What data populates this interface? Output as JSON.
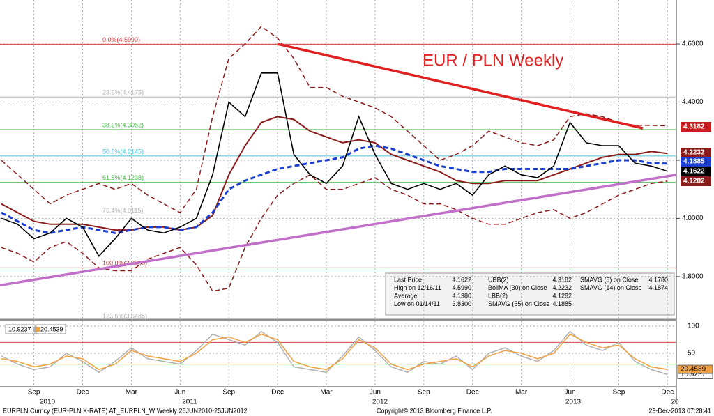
{
  "chart_data": {
    "type": "line",
    "title": "EUR / PLN Weekly",
    "categories": [
      null,
      null,
      "Sep",
      null,
      null,
      "Dec",
      null,
      null,
      "Mar",
      null,
      null,
      "Jun",
      null,
      null,
      "Sep",
      null,
      null,
      "Dec",
      null,
      null,
      "Mar",
      null,
      null,
      "Jun",
      null,
      null,
      "Sep",
      null,
      null,
      "Dec",
      null,
      null,
      "Mar",
      null,
      null,
      "Jun",
      null,
      null,
      "Sep",
      null,
      null,
      "Dec"
    ],
    "years": [
      "2010",
      "2011",
      "2012",
      "2013",
      "20"
    ],
    "series": [
      {
        "name": "Last Price",
        "color": "#000000",
        "style": "solid",
        "width": 1.6,
        "values": [
          4.0,
          3.98,
          3.93,
          3.95,
          4.0,
          3.97,
          3.87,
          3.93,
          4.0,
          3.96,
          3.95,
          3.97,
          4.0,
          4.15,
          4.4,
          4.35,
          4.5,
          4.5,
          4.22,
          4.15,
          4.12,
          4.18,
          4.35,
          4.22,
          4.12,
          4.1,
          4.12,
          4.1,
          4.12,
          4.08,
          4.15,
          4.18,
          4.15,
          4.14,
          4.18,
          4.33,
          4.26,
          4.25,
          4.25,
          4.19,
          4.18,
          4.1622
        ]
      },
      {
        "name": "SMAVG (55) on Close",
        "color": "#1a3fd1",
        "style": "dashed",
        "width": 3,
        "values": [
          4.02,
          3.99,
          3.96,
          3.95,
          3.96,
          3.97,
          3.96,
          3.95,
          3.96,
          3.97,
          3.97,
          3.96,
          3.97,
          4.02,
          4.1,
          4.13,
          4.15,
          4.17,
          4.18,
          4.19,
          4.2,
          4.21,
          4.24,
          4.25,
          4.24,
          4.22,
          4.2,
          4.18,
          4.17,
          4.16,
          4.16,
          4.17,
          4.17,
          4.17,
          4.17,
          4.17,
          4.18,
          4.19,
          4.2,
          4.2,
          4.19,
          4.1885
        ]
      },
      {
        "name": "BollMA (30) on Close",
        "color": "#8b1a1a",
        "style": "solid",
        "width": 2,
        "values": [
          4.05,
          4.02,
          3.99,
          3.98,
          3.98,
          3.98,
          3.97,
          3.96,
          3.96,
          3.97,
          3.97,
          3.96,
          3.97,
          4.01,
          4.15,
          4.25,
          4.33,
          4.35,
          4.34,
          4.3,
          4.28,
          4.26,
          4.27,
          4.26,
          4.22,
          4.2,
          4.18,
          4.16,
          4.13,
          4.12,
          4.12,
          4.13,
          4.13,
          4.13,
          4.15,
          4.17,
          4.19,
          4.21,
          4.22,
          4.22,
          4.23,
          4.2232
        ]
      },
      {
        "name": "UBB(2)",
        "color": "#8b1a1a",
        "style": "dashed",
        "width": 1.5,
        "values": [
          4.2,
          4.15,
          4.1,
          4.05,
          4.08,
          4.1,
          4.12,
          4.1,
          4.12,
          4.08,
          4.05,
          4.02,
          4.1,
          4.35,
          4.55,
          4.6,
          4.66,
          4.62,
          4.55,
          4.45,
          4.45,
          4.42,
          4.4,
          4.38,
          4.35,
          4.3,
          4.25,
          4.2,
          4.22,
          4.25,
          4.3,
          4.28,
          4.26,
          4.25,
          4.27,
          4.35,
          4.36,
          4.35,
          4.33,
          4.32,
          4.32,
          4.3182
        ]
      },
      {
        "name": "LBB(2)",
        "color": "#8b1a1a",
        "style": "dashed",
        "width": 1.5,
        "values": [
          3.9,
          3.88,
          3.85,
          3.9,
          3.92,
          3.88,
          3.83,
          3.82,
          3.82,
          3.86,
          3.88,
          3.9,
          3.84,
          3.75,
          3.76,
          3.9,
          4.0,
          4.08,
          4.12,
          4.15,
          4.1,
          4.1,
          4.12,
          4.14,
          4.1,
          4.08,
          4.05,
          4.05,
          4.03,
          4.0,
          3.98,
          3.98,
          4.0,
          4.02,
          4.03,
          4.0,
          4.02,
          4.05,
          4.08,
          4.1,
          4.12,
          4.1282
        ]
      }
    ],
    "ylim": [
      3.644,
      4.751
    ],
    "yticks": [
      {
        "value": 3.8,
        "label": "3.8000"
      },
      {
        "value": 4.0,
        "label": "4.0000"
      },
      {
        "value": 4.2,
        "label": "4.2000"
      },
      {
        "value": 4.4,
        "label": "4.4000"
      },
      {
        "value": 4.6,
        "label": "4.6000"
      }
    ],
    "grid": true,
    "last_value_boxes": [
      {
        "series": 3,
        "bg": "#c81e1e"
      },
      {
        "series": 2,
        "bg": "#8b1a1a"
      },
      {
        "series": 1,
        "bg": "#1a3fd1"
      },
      {
        "series": 0,
        "bg": "#000000"
      },
      {
        "series": 4,
        "bg": "#8b1a1a"
      }
    ],
    "fib_levels": [
      {
        "label": "0.0%(4.5990)",
        "value": 4.599,
        "color": "#d04040"
      },
      {
        "label": "23.6%(4.4175)",
        "value": 4.4175,
        "color": "#b0b0b0"
      },
      {
        "label": "38.2%(4.3052)",
        "value": 4.3052,
        "color": "#3cb83c"
      },
      {
        "label": "50.0%(4.2145)",
        "value": 4.2145,
        "color": "#40c8e0"
      },
      {
        "label": "61.8%(4.1238)",
        "value": 4.1238,
        "color": "#3cb83c"
      },
      {
        "label": "76.4%(4.0115)",
        "value": 4.0115,
        "color": "#b0b0b0"
      },
      {
        "label": "100.0%(3.8300)",
        "value": 3.83,
        "color": "#a03030"
      },
      {
        "label": "123.6%(3.6485)",
        "value": 3.6485,
        "color": "#b0b0b0"
      }
    ],
    "trend_lines": [
      {
        "color": "#e02020",
        "values": [
          4.6,
          4.31
        ]
      },
      {
        "color": "#c070c8",
        "values": [
          3.77,
          4.15
        ]
      }
    ],
    "legend": [
      [
        {
          "label": "Last Price",
          "value": "4.1622"
        },
        {
          "label": "High on 12/16/11",
          "value": "4.5990"
        },
        {
          "label": "Average",
          "value": "4.1380"
        },
        {
          "label": "Low on 01/14/11",
          "value": "3.8300"
        }
      ],
      [
        {
          "label": "UBB(2)",
          "value": "4.3182"
        },
        {
          "label": "BollMA (30) on Close",
          "value": "4.2232"
        },
        {
          "label": "LBB(2)",
          "value": "4.1282"
        },
        {
          "label": "SMAVG (55) on Close",
          "value": "4.1885"
        }
      ],
      [
        {
          "label": "SMAVG (5) on Close",
          "value": "4.1780"
        },
        {
          "label": "SMAVG (14) on Close",
          "value": "4.1874"
        }
      ]
    ],
    "lower_panel": {
      "ylim": [
        -11.5,
        107.7
      ],
      "yticks": [
        50,
        100
      ],
      "levels": [
        {
          "value": 70,
          "color": "#d04040"
        },
        {
          "value": 30,
          "color": "#3cb83c"
        }
      ],
      "series": [
        {
          "name": "10.9237",
          "color": "#b0b0b0",
          "values": [
            45,
            30,
            20,
            25,
            50,
            35,
            15,
            35,
            60,
            40,
            35,
            30,
            55,
            85,
            75,
            65,
            90,
            70,
            25,
            20,
            15,
            45,
            80,
            55,
            25,
            15,
            35,
            30,
            45,
            20,
            50,
            60,
            45,
            35,
            55,
            90,
            65,
            55,
            70,
            35,
            20,
            10.9237
          ]
        },
        {
          "name": "20.4539",
          "color": "#f0a040",
          "values": [
            40,
            35,
            25,
            30,
            45,
            40,
            20,
            30,
            55,
            45,
            40,
            35,
            50,
            75,
            80,
            70,
            85,
            75,
            35,
            25,
            20,
            40,
            75,
            60,
            30,
            20,
            30,
            35,
            40,
            25,
            45,
            55,
            50,
            40,
            50,
            85,
            70,
            60,
            65,
            40,
            25,
            20.4539
          ]
        }
      ]
    },
    "footer": {
      "left": "EURPLN Curncy (EUR-PLN X-RATE) AT_EURPLN_W  Weekly 26JUN2010-25JUN2012",
      "center": "Copyright© 2013 Bloomberg Finance L.P.",
      "right": "23-Dec-2013 07:28:41"
    }
  }
}
